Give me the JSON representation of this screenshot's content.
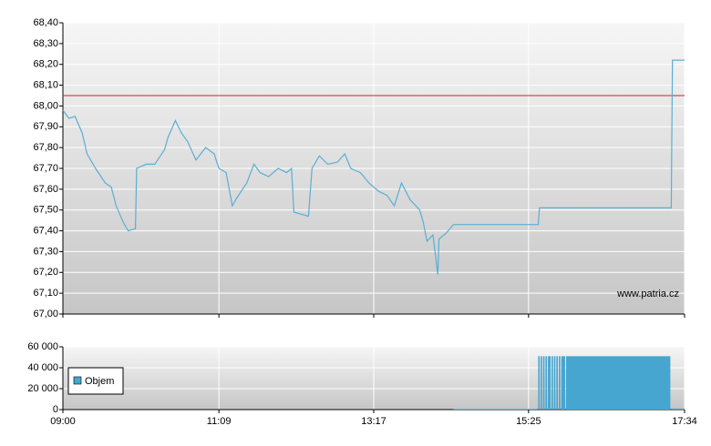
{
  "chart_data": [
    {
      "type": "line",
      "x": [
        540,
        545,
        550,
        556,
        560,
        567,
        575,
        580,
        584,
        590,
        594,
        600,
        601,
        609,
        616,
        624,
        627,
        633,
        638,
        643,
        650,
        658,
        665,
        669,
        675,
        680,
        684,
        692,
        698,
        703,
        710,
        718,
        725,
        729,
        731,
        743,
        746,
        752,
        759,
        767,
        773,
        778,
        786,
        793,
        801,
        808,
        814,
        820,
        827,
        835,
        838,
        841,
        846,
        850,
        851,
        857,
        863,
        933,
        934,
        1043,
        1044,
        1054
      ],
      "values": [
        67.98,
        67.94,
        67.95,
        67.87,
        67.77,
        67.7,
        67.63,
        67.61,
        67.52,
        67.44,
        67.4,
        67.41,
        67.7,
        67.72,
        67.72,
        67.79,
        67.85,
        67.93,
        67.87,
        67.83,
        67.74,
        67.8,
        67.77,
        67.7,
        67.68,
        67.52,
        67.56,
        67.63,
        67.72,
        67.68,
        67.66,
        67.7,
        67.68,
        67.7,
        67.49,
        67.47,
        67.7,
        67.76,
        67.72,
        67.73,
        67.77,
        67.7,
        67.68,
        67.63,
        67.59,
        67.57,
        67.52,
        67.63,
        67.55,
        67.5,
        67.44,
        67.35,
        67.38,
        67.19,
        67.36,
        67.39,
        67.43,
        67.43,
        67.51,
        67.51,
        68.22,
        68.22
      ],
      "color": "#5aaed4",
      "reference_line": 68.05,
      "reference_color": "#cc2222",
      "xlim": [
        540,
        1054
      ],
      "ylim": [
        67.0,
        68.4
      ],
      "yticks": [
        {
          "value": 67.0,
          "label": "67,00"
        },
        {
          "value": 67.1,
          "label": "67,10"
        },
        {
          "value": 67.2,
          "label": "67,20"
        },
        {
          "value": 67.3,
          "label": "67,30"
        },
        {
          "value": 67.4,
          "label": "67,40"
        },
        {
          "value": 67.5,
          "label": "67,50"
        },
        {
          "value": 67.6,
          "label": "67,60"
        },
        {
          "value": 67.7,
          "label": "67,70"
        },
        {
          "value": 67.8,
          "label": "67,80"
        },
        {
          "value": 67.9,
          "label": "67,90"
        },
        {
          "value": 68.0,
          "label": "68,00"
        },
        {
          "value": 68.1,
          "label": "68,10"
        },
        {
          "value": 68.2,
          "label": "68,20"
        },
        {
          "value": 68.3,
          "label": "68,30"
        },
        {
          "value": 68.4,
          "label": "68,40"
        }
      ],
      "grid": true,
      "watermark": "www.patria.cz"
    },
    {
      "type": "bar",
      "x": [
        863,
        933,
        935,
        937,
        939,
        941,
        944,
        946,
        948,
        950,
        952,
        956,
        1043
      ],
      "series": [
        {
          "name": "Objem",
          "color": "#46a6d0",
          "values": [
            500,
            51000,
            51000,
            51000,
            51000,
            51000,
            51000,
            51000,
            51000,
            51000,
            51000,
            51000,
            1000
          ]
        }
      ],
      "xlim": [
        540,
        1054
      ],
      "ylim": [
        0,
        60000
      ],
      "yticks": [
        0,
        {
          "value": 20000,
          "label": "20 000"
        },
        {
          "value": 40000,
          "label": "40 000"
        },
        {
          "value": 60000,
          "label": "60 000"
        }
      ],
      "xticks": [
        {
          "value": 540,
          "label": "09:00"
        },
        {
          "value": 669,
          "label": "11:09"
        },
        {
          "value": 797,
          "label": "13:17"
        },
        {
          "value": 925,
          "label": "15:25"
        },
        {
          "value": 1054,
          "label": "17:34"
        }
      ],
      "grid": true,
      "legend": "top-left"
    }
  ]
}
